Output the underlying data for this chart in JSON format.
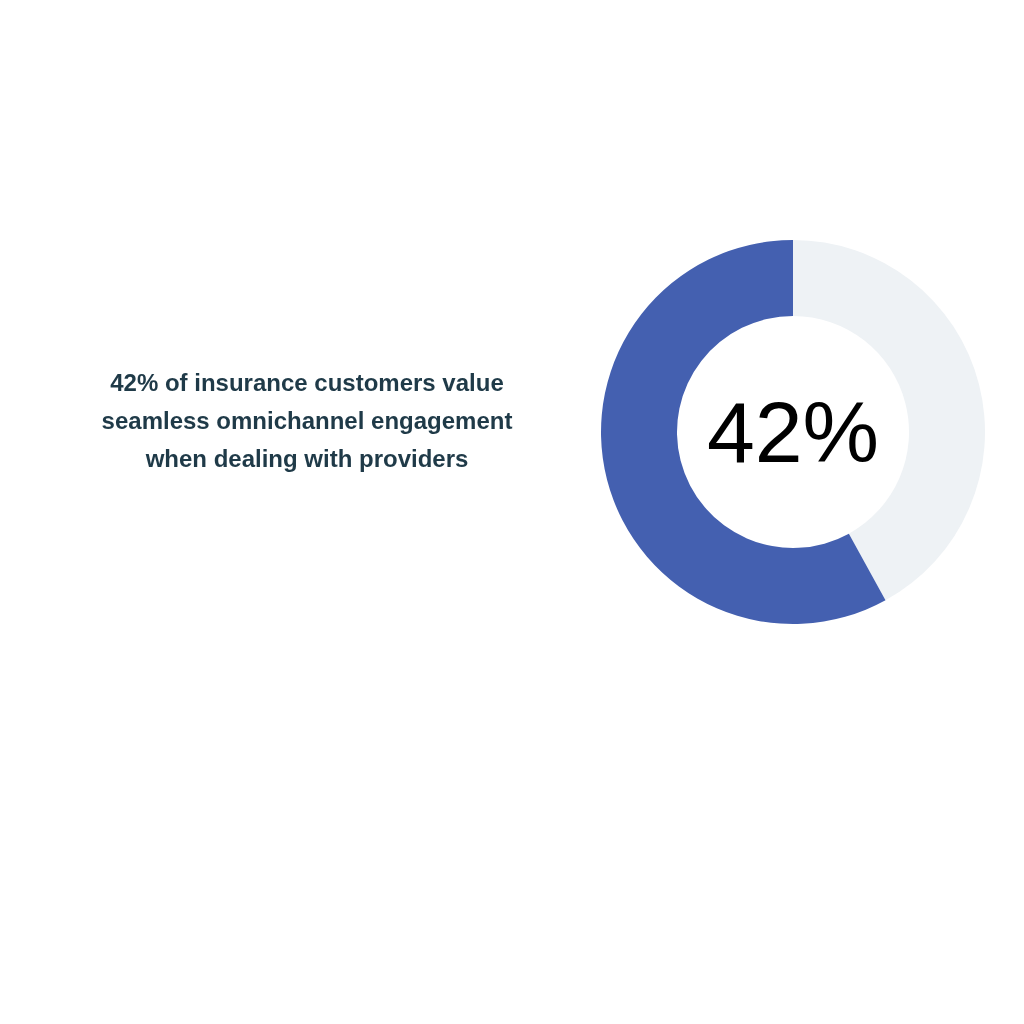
{
  "chart_data": {
    "type": "donut",
    "title": "42% of insurance customers value seamless omnichannel engagement when dealing with providers",
    "categories": [
      null,
      null
    ],
    "values": [
      42,
      58
    ],
    "colors": [
      "#eef2f5",
      "#4460b0"
    ],
    "annotations": [
      "42%"
    ]
  }
}
